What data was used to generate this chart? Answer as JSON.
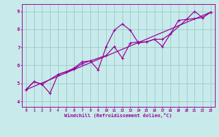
{
  "xlabel": "Windchill (Refroidissement éolien,°C)",
  "xlim": [
    -0.5,
    23.5
  ],
  "ylim": [
    3.7,
    9.4
  ],
  "xticks": [
    0,
    1,
    2,
    3,
    4,
    5,
    6,
    7,
    8,
    9,
    10,
    11,
    12,
    13,
    14,
    15,
    16,
    17,
    18,
    19,
    20,
    21,
    22,
    23
  ],
  "yticks": [
    4,
    5,
    6,
    7,
    8,
    9
  ],
  "background_color": "#c8eaea",
  "line_color": "#990099",
  "grid_color": "#9ecece",
  "line1_x": [
    0,
    1,
    2,
    3,
    4,
    5,
    6,
    7,
    8,
    9,
    10,
    11,
    12,
    13,
    14,
    15,
    16,
    17,
    18,
    19,
    20,
    21,
    22,
    23
  ],
  "line1_y": [
    4.65,
    5.1,
    4.95,
    4.45,
    5.5,
    5.65,
    5.8,
    6.1,
    6.25,
    5.75,
    7.05,
    7.95,
    8.3,
    7.95,
    7.25,
    7.3,
    7.45,
    7.05,
    7.75,
    8.5,
    8.55,
    9.0,
    8.65,
    8.95
  ],
  "line2_x": [
    0,
    1,
    2,
    4,
    5,
    6,
    7,
    8,
    10,
    11,
    12,
    13,
    14,
    15,
    16,
    17,
    18,
    20,
    21,
    22,
    23
  ],
  "line2_y": [
    4.65,
    5.1,
    4.95,
    5.5,
    5.65,
    5.85,
    6.2,
    6.25,
    6.55,
    7.05,
    6.4,
    7.25,
    7.3,
    7.3,
    7.45,
    7.45,
    7.75,
    8.55,
    8.6,
    8.65,
    8.95
  ],
  "line3_x": [
    0,
    23
  ],
  "line3_y": [
    4.65,
    8.95
  ]
}
